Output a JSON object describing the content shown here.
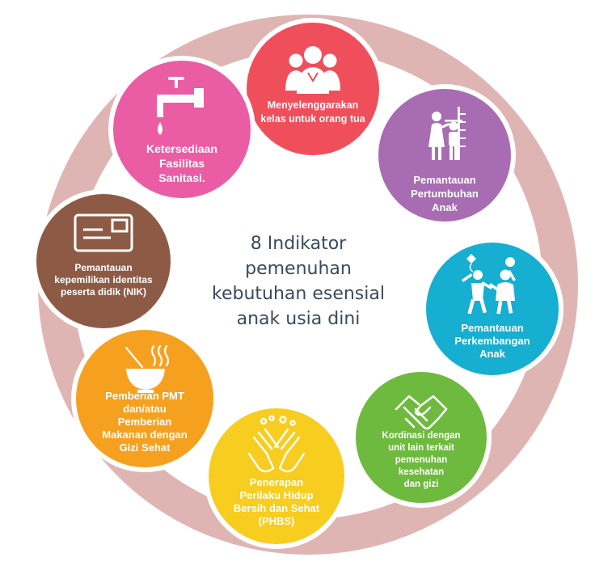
{
  "title_lines": [
    "8 Indikator",
    "pemenuhan",
    "kebutuhan esensial",
    "anak usia dini"
  ],
  "colors": {
    "ring": "#dfb5b3",
    "title": "#3a4a5c",
    "kelas": "#ef4f5b",
    "pertumbuhan": "#a86cb2",
    "perkembangan": "#16aed1",
    "kordinasi": "#6dba3e",
    "phbs": "#f7cd1f",
    "pmt": "#f6a020",
    "nik": "#8d5b45",
    "sanitasi": "#ea5da4"
  },
  "indicators": [
    {
      "key": "kelas",
      "icon": "group-of-people-icon",
      "lines": [
        "Menyelenggarakan",
        "kelas untuk orang tua"
      ]
    },
    {
      "key": "pertumbuhan",
      "icon": "child-height-measure-icon",
      "lines": [
        "Pemantauan",
        "Pertumbuhan",
        "Anak"
      ]
    },
    {
      "key": "perkembangan",
      "icon": "children-playing-icon",
      "lines": [
        "Pemantauan",
        "Perkembangan",
        "Anak"
      ]
    },
    {
      "key": "kordinasi",
      "icon": "handshake-icon",
      "lines": [
        "Kordinasi dengan",
        "unit lain terkait",
        "pemenuhan",
        "kesehatan",
        "dan gizi"
      ]
    },
    {
      "key": "phbs",
      "icon": "hand-washing-icon",
      "lines": [
        "Penerapan",
        "Perilaku Hidup",
        "Bersih dan Sehat",
        "(PHBS)"
      ]
    },
    {
      "key": "pmt",
      "icon": "hot-bowl-icon",
      "lines": [
        "Pemberian PMT",
        "dan/atau",
        "Pemberian",
        "Makanan dengan",
        "Gizi Sehat"
      ]
    },
    {
      "key": "nik",
      "icon": "id-card-icon",
      "lines": [
        "Pemantauan",
        "kepemilikan identitas",
        "peserta didik (NIK)"
      ]
    },
    {
      "key": "sanitasi",
      "icon": "water-tap-icon",
      "lines": [
        "Ketersediaan",
        "Fasilitas",
        "Sanitasi."
      ]
    }
  ]
}
